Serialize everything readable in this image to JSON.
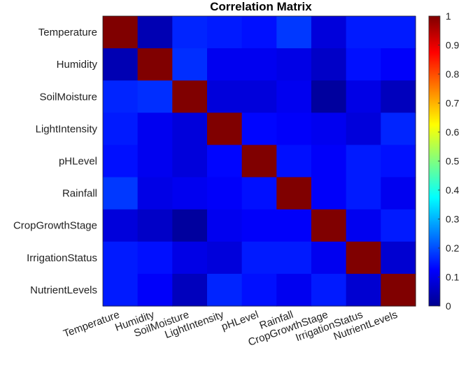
{
  "chart_data": {
    "type": "heatmap",
    "title": "Correlation Matrix",
    "xlabel": "",
    "ylabel": "",
    "x_categories": [
      "Temperature",
      "Humidity",
      "SoilMoisture",
      "LightIntensity",
      "pHLevel",
      "Rainfall",
      "CropGrowthStage",
      "IrrigationStatus",
      "NutrientLevels"
    ],
    "y_categories": [
      "Temperature",
      "Humidity",
      "SoilMoisture",
      "LightIntensity",
      "pHLevel",
      "Rainfall",
      "CropGrowthStage",
      "IrrigationStatus",
      "NutrientLevels"
    ],
    "values": [
      [
        1.0,
        0.05,
        0.16,
        0.15,
        0.14,
        0.18,
        0.09,
        0.15,
        0.15
      ],
      [
        0.05,
        1.0,
        0.17,
        0.11,
        0.11,
        0.1,
        0.07,
        0.14,
        0.12
      ],
      [
        0.16,
        0.17,
        1.0,
        0.09,
        0.09,
        0.11,
        0.03,
        0.1,
        0.06
      ],
      [
        0.15,
        0.11,
        0.09,
        1.0,
        0.13,
        0.12,
        0.11,
        0.09,
        0.16
      ],
      [
        0.14,
        0.11,
        0.09,
        0.13,
        1.0,
        0.14,
        0.12,
        0.15,
        0.14
      ],
      [
        0.18,
        0.1,
        0.11,
        0.12,
        0.14,
        1.0,
        0.12,
        0.15,
        0.11
      ],
      [
        0.09,
        0.07,
        0.03,
        0.11,
        0.12,
        0.12,
        1.0,
        0.11,
        0.15
      ],
      [
        0.15,
        0.14,
        0.1,
        0.09,
        0.15,
        0.15,
        0.11,
        1.0,
        0.08
      ],
      [
        0.15,
        0.12,
        0.06,
        0.16,
        0.14,
        0.11,
        0.15,
        0.08,
        1.0
      ]
    ],
    "zlim": [
      0,
      1
    ],
    "colormap": "jet",
    "colorbar": {
      "ticks": [
        "0",
        "0.1",
        "0.2",
        "0.3",
        "0.4",
        "0.5",
        "0.6",
        "0.7",
        "0.8",
        "0.9",
        "1"
      ],
      "placement": "right"
    },
    "grid": false
  }
}
